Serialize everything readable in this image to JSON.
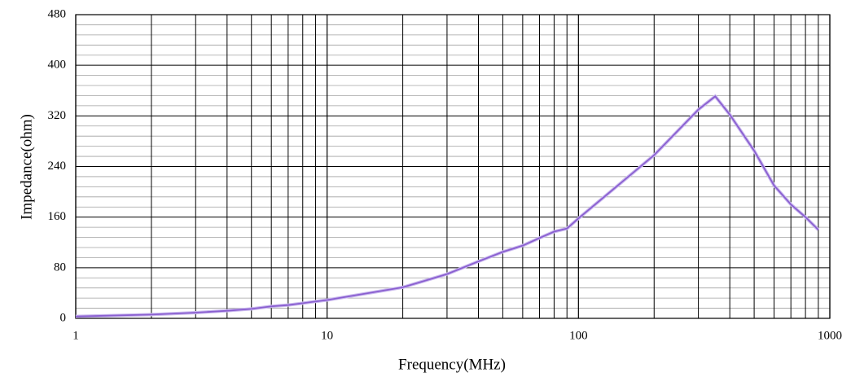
{
  "chart_data": {
    "type": "line",
    "xlabel": "Frequency(MHz)",
    "ylabel": "Impedance(ohm)",
    "x": [
      1,
      2,
      3,
      4,
      5,
      6,
      7,
      8,
      10,
      20,
      30,
      40,
      50,
      60,
      70,
      80,
      90,
      100,
      200,
      300,
      350,
      400,
      500,
      600,
      700,
      800,
      900
    ],
    "values": [
      3,
      6,
      9,
      12,
      15,
      19,
      21,
      24,
      29,
      49,
      70,
      90,
      105,
      115,
      127,
      137,
      142,
      158,
      258,
      330,
      351,
      322,
      265,
      210,
      180,
      160,
      140
    ],
    "color": "#8a5fd0",
    "xscale": "log",
    "xlim": [
      1,
      1000
    ],
    "xticks": [
      1,
      10,
      100,
      1000
    ],
    "ylim": [
      0,
      480
    ],
    "yticks": [
      0,
      80,
      160,
      240,
      320,
      400,
      480
    ],
    "grid": true,
    "minor_grid": true
  }
}
